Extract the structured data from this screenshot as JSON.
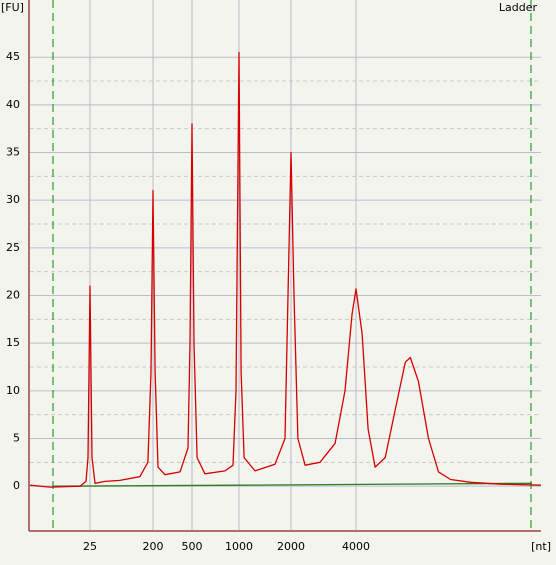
{
  "chart_data": {
    "type": "line",
    "y_label": "[FU]",
    "x_label": "[nt]",
    "annotation": "Ladder",
    "xlim": [
      4,
      28000
    ],
    "xticks": [
      25,
      200,
      500,
      1000,
      2000,
      4000
    ],
    "ylim": [
      -4.6,
      51
    ],
    "yticks": [
      0,
      5,
      10,
      15,
      20,
      25,
      30,
      35,
      40,
      45
    ],
    "grid": true,
    "series": [
      {
        "color": "#d40000",
        "x": [
          4,
          7.4,
          18.4,
          22.1,
          23.5,
          25,
          26.7,
          29.5,
          41,
          67,
          130,
          169,
          187,
          200,
          210,
          225,
          265,
          377,
          455,
          477,
          500,
          515,
          539,
          605,
          813,
          916,
          957,
          1000,
          1028,
          1070,
          1238,
          1616,
          1845,
          1921,
          2000,
          2065,
          2153,
          2323,
          2723,
          3199,
          3556,
          3831,
          4000,
          4266,
          4543,
          4891,
          5436,
          6043,
          6719,
          7080,
          7707,
          8570,
          9528,
          10814,
          13366,
          18330,
          28000
        ],
        "values": [
          0.1,
          -0.1,
          0,
          0.5,
          3,
          21,
          3,
          0.3,
          0.5,
          0.6,
          1,
          2.5,
          12,
          31,
          12,
          2,
          1.2,
          1.5,
          4,
          15,
          38,
          15,
          3,
          1.3,
          1.6,
          2.2,
          10,
          45.5,
          12,
          3,
          1.6,
          2.3,
          5,
          20,
          35,
          20,
          5,
          2.2,
          2.5,
          4.5,
          10,
          18,
          20.7,
          16,
          6,
          2,
          3,
          8,
          13,
          13.5,
          11,
          5,
          1.5,
          0.7,
          0.4,
          0.2,
          0.1
        ]
      },
      {
        "color": "#2e7d1e",
        "x": [
          8.1,
          1000,
          25470
        ],
        "values": [
          0,
          0.1,
          0.3
        ]
      }
    ]
  }
}
